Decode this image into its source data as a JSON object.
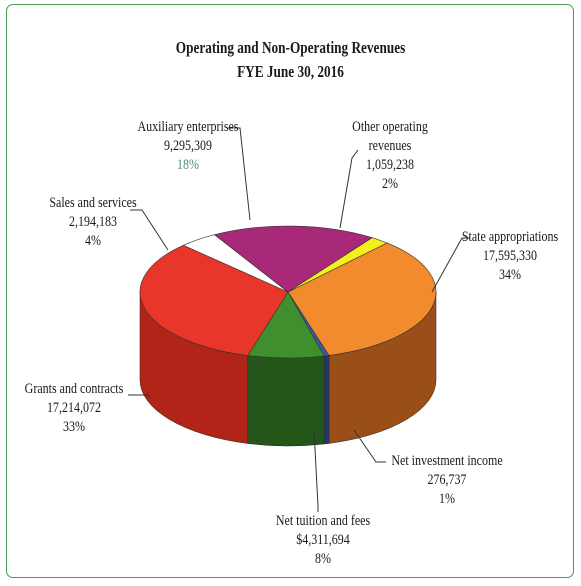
{
  "chart_data": {
    "type": "pie",
    "title": "Operating and Non-Operating Revenues",
    "subtitle": "FYE June 30, 2016",
    "slices": [
      {
        "name": "State appropriations",
        "value_label": "17,595,330",
        "value": 17595330,
        "percent_label": "34%",
        "percent": 34,
        "color": "#f28a2e",
        "side_color": "#9a4f18"
      },
      {
        "name": "Net investment income",
        "value_label": "276,737",
        "value": 276737,
        "percent_label": "1%",
        "percent": 1,
        "color": "#3a5a9a",
        "side_color": "#243866"
      },
      {
        "name": "Net tuition and fees",
        "value_label": "$4,311,694",
        "value": 4311694,
        "percent_label": "8%",
        "percent": 8,
        "color": "#3f8f2e",
        "side_color": "#24561a"
      },
      {
        "name": "Grants and contracts",
        "value_label": "17,214,072",
        "value": 17214072,
        "percent_label": "33%",
        "percent": 33,
        "color": "#e8362a",
        "side_color": "#b22418"
      },
      {
        "name": "Sales and services",
        "value_label": "2,194,183",
        "value": 2194183,
        "percent_label": "4%",
        "percent": 4,
        "color": "#ffffff",
        "side_color": "#f0f0f0"
      },
      {
        "name": "Auxiliary enterprises",
        "value_label": "9,295,309",
        "value": 9295309,
        "percent_label": "18%",
        "percent": 18,
        "color": "#a8287a",
        "side_color": "#6e1a50"
      },
      {
        "name": "Other operating revenues",
        "value_label": "1,059,238",
        "value": 1059238,
        "percent_label": "2%",
        "percent": 2,
        "color": "#f4f020",
        "side_color": "#b8b418"
      }
    ]
  }
}
